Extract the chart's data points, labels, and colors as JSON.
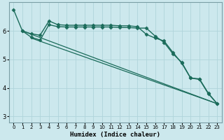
{
  "xlabel": "Humidex (Indice chaleur)",
  "bg_color": "#cce8ed",
  "grid_color": "#b0d4db",
  "line_color": "#1a6b5a",
  "xlim": [
    -0.5,
    23.5
  ],
  "ylim": [
    2.8,
    7.0
  ],
  "yticks": [
    3,
    4,
    5,
    6
  ],
  "xticks": [
    0,
    1,
    2,
    3,
    4,
    5,
    6,
    7,
    8,
    9,
    10,
    11,
    12,
    13,
    14,
    15,
    16,
    17,
    18,
    19,
    20,
    21,
    22,
    23
  ],
  "series": [
    {
      "x": [
        0,
        1,
        2,
        3,
        4,
        5,
        6,
        7,
        8,
        9,
        10,
        11,
        12,
        13,
        14,
        15,
        16,
        17,
        18,
        19,
        20,
        21,
        22,
        23
      ],
      "y": [
        6.75,
        6.0,
        5.9,
        5.85,
        6.35,
        6.22,
        6.2,
        6.2,
        6.2,
        6.2,
        6.2,
        6.2,
        6.18,
        6.18,
        6.15,
        5.88,
        5.75,
        5.65,
        5.25,
        4.87,
        4.35,
        4.32,
        3.82,
        3.45
      ],
      "marker": "D",
      "markersize": 2.5,
      "linewidth": 1.0
    },
    {
      "x": [
        1,
        2,
        3,
        4,
        5,
        6,
        7,
        8,
        9,
        10,
        11,
        12,
        13,
        14,
        15,
        16,
        17,
        18,
        19,
        20,
        21,
        22,
        23
      ],
      "y": [
        6.0,
        5.78,
        5.68,
        6.22,
        6.15,
        6.14,
        6.14,
        6.14,
        6.14,
        6.14,
        6.14,
        6.12,
        6.12,
        6.1,
        6.1,
        5.82,
        5.6,
        5.2,
        4.9,
        4.35,
        4.3,
        3.8,
        3.45
      ],
      "marker": "D",
      "markersize": 2.5,
      "linewidth": 1.0
    },
    {
      "x": [
        1,
        23
      ],
      "y": [
        6.0,
        3.45
      ],
      "marker": null,
      "markersize": 0,
      "linewidth": 0.9
    },
    {
      "x": [
        2,
        23
      ],
      "y": [
        5.75,
        3.45
      ],
      "marker": null,
      "markersize": 0,
      "linewidth": 0.9
    }
  ]
}
